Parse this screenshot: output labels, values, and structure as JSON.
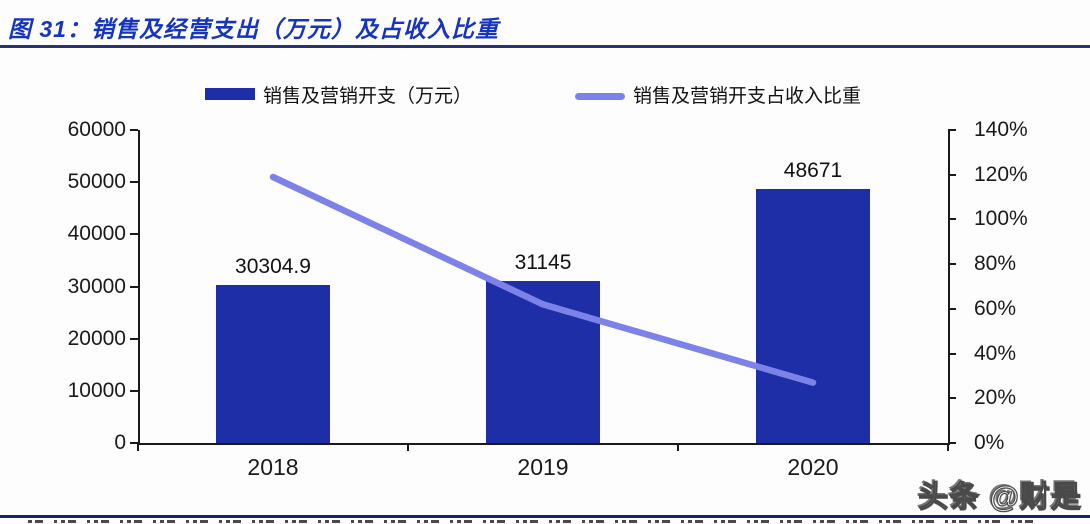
{
  "header": {
    "title": "图 31：销售及经营支出（万元）及占收入比重"
  },
  "legend": [
    {
      "swatch": "bar-swatch",
      "label": "销售及营销开支（万元）"
    },
    {
      "swatch": "line-swatch",
      "label": "销售及营销开支占收入比重"
    }
  ],
  "chart_data": {
    "type": "combo-bar-line",
    "categories": [
      "2018",
      "2019",
      "2020"
    ],
    "series": [
      {
        "name": "销售及营销开支（万元）",
        "type": "bar",
        "axis": "left",
        "values": [
          30304.9,
          31145,
          48671
        ],
        "labels": [
          "30304.9",
          "31145",
          "48671"
        ],
        "color": "#1E2EA6"
      },
      {
        "name": "销售及营销开支占收入比重",
        "type": "line",
        "axis": "right",
        "values_percent": [
          119,
          62,
          27
        ],
        "color": "#7C82E8"
      }
    ],
    "left_axis": {
      "min": 0,
      "max": 60000,
      "ticks": [
        "60000",
        "50000",
        "40000",
        "30000",
        "20000",
        "10000",
        "0"
      ]
    },
    "right_axis": {
      "min_percent": 0,
      "max_percent": 140,
      "ticks": [
        "140%",
        "120%",
        "100%",
        "80%",
        "60%",
        "40%",
        "20%",
        "0%"
      ]
    },
    "grid": false,
    "legend_position": "top"
  },
  "watermark": "头条 @财是",
  "colors": {
    "bar": "#1E2EA6",
    "line": "#7C82E8",
    "title": "#1535BE",
    "title_rule": "#283371",
    "bottom_rule": "#19235C"
  }
}
